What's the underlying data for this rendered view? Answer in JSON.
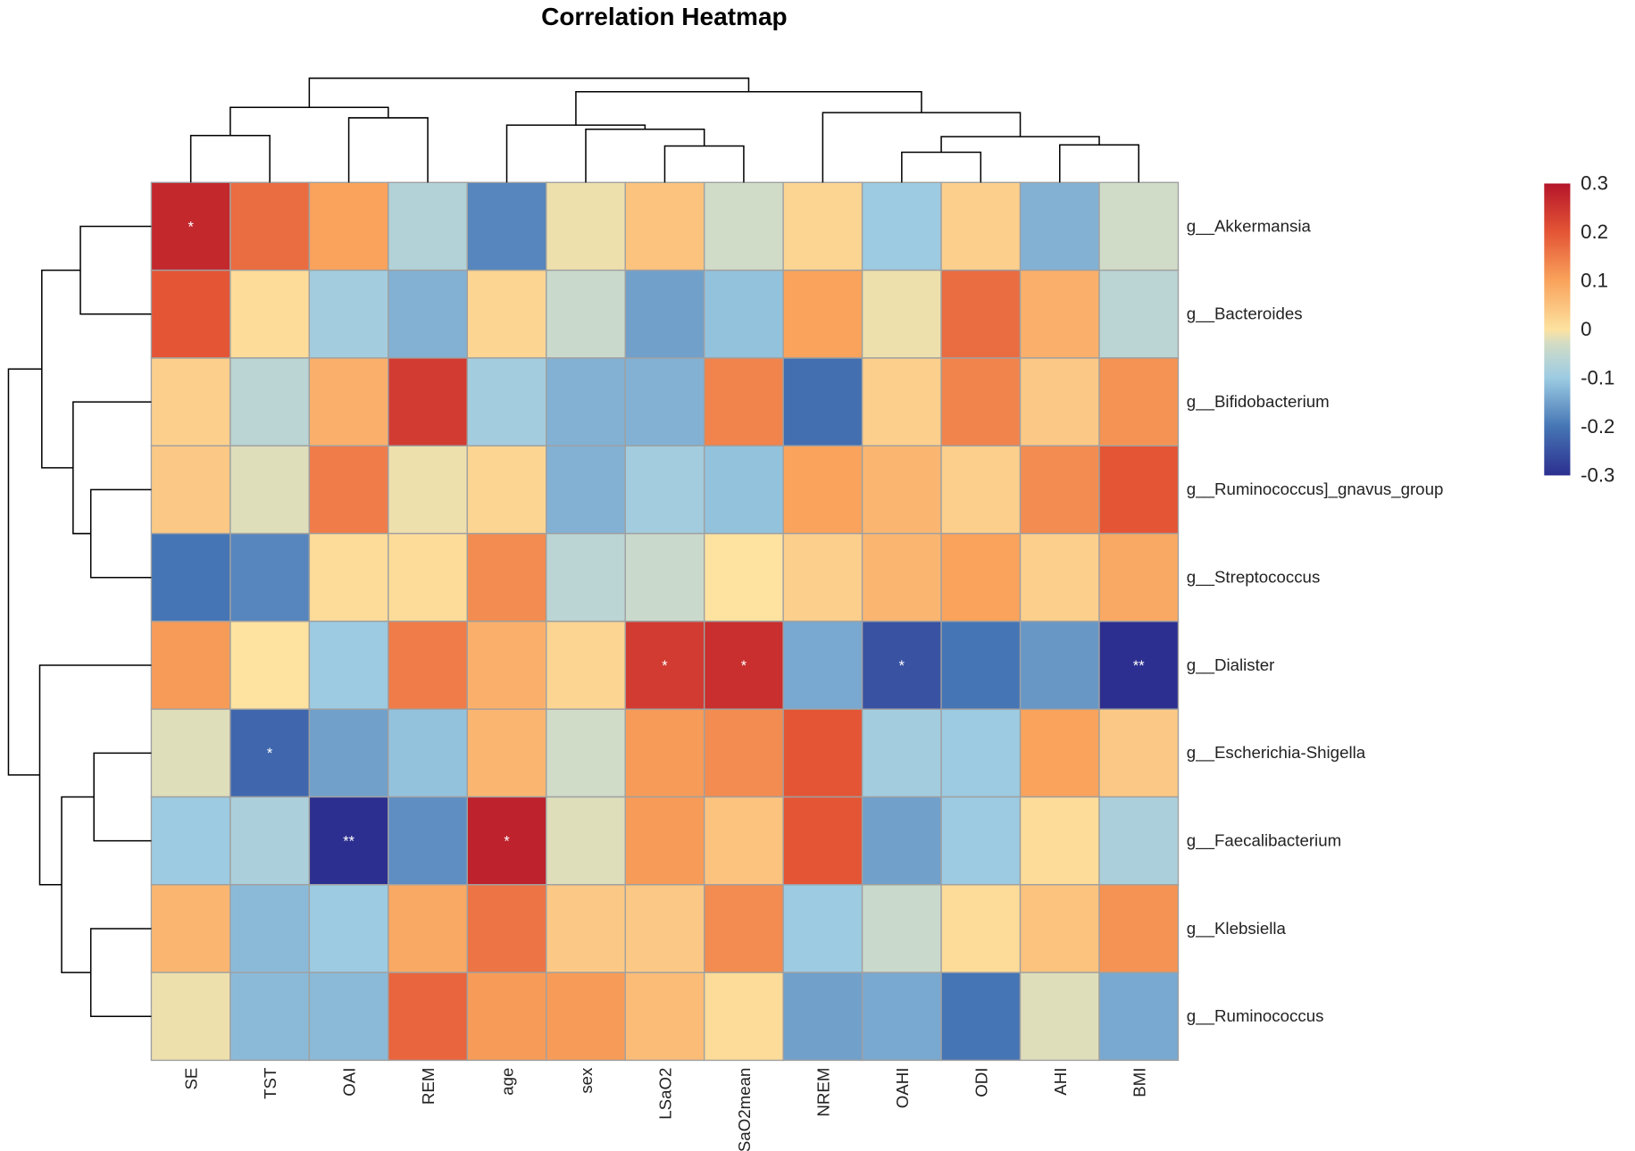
{
  "chart_data": {
    "type": "heatmap",
    "title": "Correlation Heatmap",
    "columns": [
      "SE",
      "TST",
      "OAI",
      "REM",
      "age",
      "sex",
      "LSaO2",
      "SaO2mean",
      "NREM",
      "OAHI",
      "ODI",
      "AHI",
      "BMI"
    ],
    "rows": [
      "g__Akkermansia",
      "g__Bacteroides",
      "g__Bifidobacterium",
      "g__Ruminococcus]_gnavus_group",
      "g__Streptococcus",
      "g__Dialister",
      "g__Escherichia-Shigella",
      "g__Faecalibacterium",
      "g__Klebsiella",
      "g__Ruminococcus"
    ],
    "values": [
      [
        0.27,
        0.17,
        0.1,
        -0.07,
        -0.18,
        -0.01,
        0.05,
        -0.03,
        0.02,
        -0.1,
        0.03,
        -0.13,
        -0.03
      ],
      [
        0.2,
        0.01,
        -0.09,
        -0.13,
        0.02,
        -0.04,
        -0.15,
        -0.11,
        0.1,
        -0.01,
        0.17,
        0.08,
        -0.06
      ],
      [
        0.03,
        -0.06,
        0.08,
        0.24,
        -0.09,
        -0.13,
        -0.13,
        0.14,
        -0.21,
        0.03,
        0.14,
        0.04,
        0.12
      ],
      [
        0.04,
        -0.02,
        0.15,
        -0.01,
        0.02,
        -0.13,
        -0.09,
        -0.11,
        0.1,
        0.07,
        0.03,
        0.13,
        0.2
      ],
      [
        -0.2,
        -0.18,
        0.01,
        0.01,
        0.13,
        -0.06,
        -0.04,
        0.0,
        0.03,
        0.07,
        0.1,
        0.03,
        0.09
      ],
      [
        0.11,
        0.0,
        -0.1,
        0.15,
        0.08,
        0.02,
        0.24,
        0.26,
        -0.14,
        -0.25,
        -0.2,
        -0.16,
        -0.3
      ],
      [
        -0.02,
        -0.22,
        -0.15,
        -0.11,
        0.07,
        -0.03,
        0.11,
        0.13,
        0.2,
        -0.09,
        -0.1,
        0.1,
        0.04
      ],
      [
        -0.1,
        -0.08,
        -0.3,
        -0.17,
        0.28,
        -0.02,
        0.11,
        0.05,
        0.2,
        -0.15,
        -0.1,
        0.01,
        -0.08
      ],
      [
        0.07,
        -0.12,
        -0.1,
        0.09,
        0.16,
        0.04,
        0.04,
        0.13,
        -0.1,
        -0.04,
        0.01,
        0.05,
        0.12
      ],
      [
        -0.01,
        -0.12,
        -0.12,
        0.18,
        0.11,
        0.11,
        0.06,
        0.01,
        -0.15,
        -0.14,
        -0.2,
        -0.02,
        -0.14
      ]
    ],
    "significance": [
      [
        "*",
        "",
        "",
        "",
        "",
        "",
        "",
        "",
        "",
        "",
        "",
        "",
        ""
      ],
      [
        "",
        "",
        "",
        "",
        "",
        "",
        "",
        "",
        "",
        "",
        "",
        "",
        ""
      ],
      [
        "",
        "",
        "",
        "",
        "",
        "",
        "",
        "",
        "",
        "",
        "",
        "",
        ""
      ],
      [
        "",
        "",
        "",
        "",
        "",
        "",
        "",
        "",
        "",
        "",
        "",
        "",
        ""
      ],
      [
        "",
        "",
        "",
        "",
        "",
        "",
        "",
        "",
        "",
        "",
        "",
        "",
        ""
      ],
      [
        "",
        "",
        "",
        "",
        "",
        "",
        "*",
        "*",
        "",
        "*",
        "",
        "",
        "**"
      ],
      [
        "",
        "*",
        "",
        "",
        "",
        "",
        "",
        "",
        "",
        "",
        "",
        "",
        ""
      ],
      [
        "",
        "",
        "**",
        "",
        "*",
        "",
        "",
        "",
        "",
        "",
        "",
        "",
        ""
      ],
      [
        "",
        "",
        "",
        "",
        "",
        "",
        "",
        "",
        "",
        "",
        "",
        "",
        ""
      ],
      [
        "",
        "",
        "",
        "",
        "",
        "",
        "",
        "",
        "",
        "",
        "",
        "",
        ""
      ]
    ],
    "colorbar": {
      "range": [
        -0.3,
        0.3
      ],
      "ticks": [
        "0.3",
        "0.2",
        "0.1",
        "0",
        "-0.1",
        "-0.2",
        "-0.3"
      ],
      "low_color": "#2c2f8f",
      "high_color": "#b5152a"
    },
    "legend_position": "right"
  }
}
